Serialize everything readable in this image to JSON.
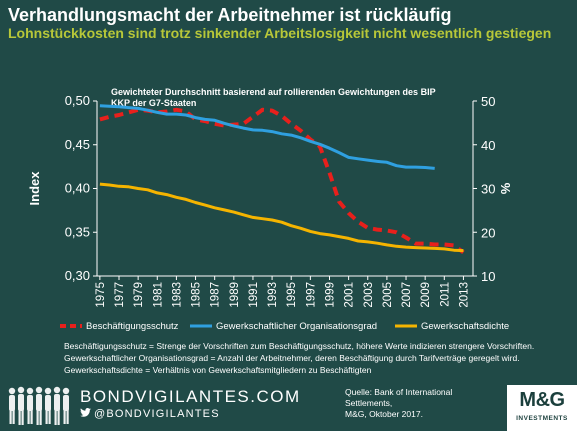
{
  "header": {
    "title": "Verhandlungsmacht der Arbeitnehmer ist rückläufig",
    "subtitle": "Lohnstückkosten sind trotz sinkender Arbeitslosigkeit nicht wesentlich gestiegen"
  },
  "chart_data": {
    "type": "line",
    "annotation": "Gewichteter Durchschnitt basierend auf rollierenden Gewichtungen des BIP KKP der G7-Staaten",
    "ylabel_left": "Index",
    "ylabel_right": "%",
    "ylim_left": [
      0.3,
      0.5
    ],
    "ylim_right": [
      10,
      50
    ],
    "yticks_left": [
      "0,30",
      "0,35",
      "0,40",
      "0,45",
      "0,50"
    ],
    "yticks_right": [
      "10",
      "20",
      "30",
      "40",
      "50"
    ],
    "xticks": [
      "1975",
      "1977",
      "1979",
      "1981",
      "1983",
      "1985",
      "1987",
      "1989",
      "1991",
      "1993",
      "1995",
      "1997",
      "1999",
      "2001",
      "2003",
      "2005",
      "2007",
      "2009",
      "2011",
      "2013"
    ],
    "grid": false,
    "legend_position": "bottom",
    "series": [
      {
        "name": "Beschäftigungsschutz",
        "axis": "left",
        "color": "#e8201c",
        "style": "dashed",
        "x": [
          1975,
          1976,
          1977,
          1978,
          1979,
          1980,
          1981,
          1982,
          1983,
          1984,
          1985,
          1986,
          1987,
          1988,
          1989,
          1990,
          1991,
          1992,
          1993,
          1994,
          1995,
          1996,
          1997,
          1998,
          1999,
          2000,
          2001,
          2002,
          2003,
          2004,
          2005,
          2006,
          2007,
          2008,
          2009,
          2010,
          2011,
          2012,
          2013
        ],
        "values": [
          0.479,
          0.482,
          0.484,
          0.487,
          0.49,
          0.489,
          0.487,
          0.488,
          0.49,
          0.488,
          0.479,
          0.477,
          0.474,
          0.472,
          0.473,
          0.474,
          0.482,
          0.49,
          0.489,
          0.483,
          0.474,
          0.466,
          0.456,
          0.448,
          0.418,
          0.385,
          0.372,
          0.362,
          0.355,
          0.353,
          0.352,
          0.35,
          0.344,
          0.337,
          0.337,
          0.336,
          0.336,
          0.335,
          0.327
        ]
      },
      {
        "name": "Gewerkschaftlicher Organisationsgrad",
        "axis": "right",
        "color": "#2fa0e0",
        "style": "solid",
        "x": [
          1975,
          1976,
          1977,
          1978,
          1979,
          1980,
          1981,
          1982,
          1983,
          1984,
          1985,
          1986,
          1987,
          1988,
          1989,
          1990,
          1991,
          1992,
          1993,
          1994,
          1995,
          1996,
          1997,
          1998,
          1999,
          2000,
          2001,
          2002,
          2003,
          2004,
          2005,
          2006,
          2007,
          2008,
          2009,
          2010
        ],
        "values": [
          48.9,
          48.8,
          48.7,
          48.5,
          48.3,
          47.9,
          47.4,
          47.0,
          47.0,
          46.8,
          46.2,
          45.8,
          45.6,
          44.9,
          44.3,
          43.8,
          43.4,
          43.3,
          43.0,
          42.5,
          42.2,
          41.6,
          40.8,
          40.1,
          39.2,
          38.2,
          37.1,
          36.8,
          36.5,
          36.2,
          36.0,
          35.2,
          34.9,
          34.9,
          34.8,
          34.6
        ]
      },
      {
        "name": "Gewerkschaftsdichte",
        "axis": "right",
        "color": "#f5b400",
        "style": "solid",
        "x": [
          1975,
          1976,
          1977,
          1978,
          1979,
          1980,
          1981,
          1982,
          1983,
          1984,
          1985,
          1986,
          1987,
          1988,
          1989,
          1990,
          1991,
          1992,
          1993,
          1994,
          1995,
          1996,
          1997,
          1998,
          1999,
          2000,
          2001,
          2002,
          2003,
          2004,
          2005,
          2006,
          2007,
          2008,
          2009,
          2010,
          2011,
          2012,
          2013
        ],
        "values": [
          31.0,
          30.8,
          30.5,
          30.4,
          30.0,
          29.7,
          29.0,
          28.6,
          28.0,
          27.5,
          26.8,
          26.2,
          25.6,
          25.1,
          24.6,
          24.0,
          23.4,
          23.1,
          22.8,
          22.3,
          21.5,
          20.9,
          20.2,
          19.7,
          19.4,
          19.0,
          18.6,
          18.0,
          17.8,
          17.5,
          17.1,
          16.8,
          16.6,
          16.5,
          16.4,
          16.3,
          16.2,
          15.9,
          15.8
        ]
      }
    ]
  },
  "notes": [
    "Beschäftigungsschutz = Strenge der Vorschriften zum Beschäftigungsschutz, höhere Werte indizieren strengere Vorschriften.",
    "Gewerkschaftlicher Organisationsgrad = Anzahl der Arbeitnehmer, deren Beschäftigung durch Tarifverträge geregelt wird.",
    "Gewerkschaftsdichte = Verhältnis von Gewerkschaftsmitgliedern zu Beschäftigten"
  ],
  "footer": {
    "domain": "BONDVIGILANTES.COM",
    "handle": "@BONDVIGILANTES",
    "source_line1": "Quelle: Bank of International Settlements,",
    "source_line2": "M&G, Oktober 2017.",
    "brand": "M&G",
    "brand_sub": "INVESTMENTS"
  },
  "colors": {
    "background": "#204a47",
    "subtitle": "#b7c739",
    "axis": "#ffffff"
  }
}
